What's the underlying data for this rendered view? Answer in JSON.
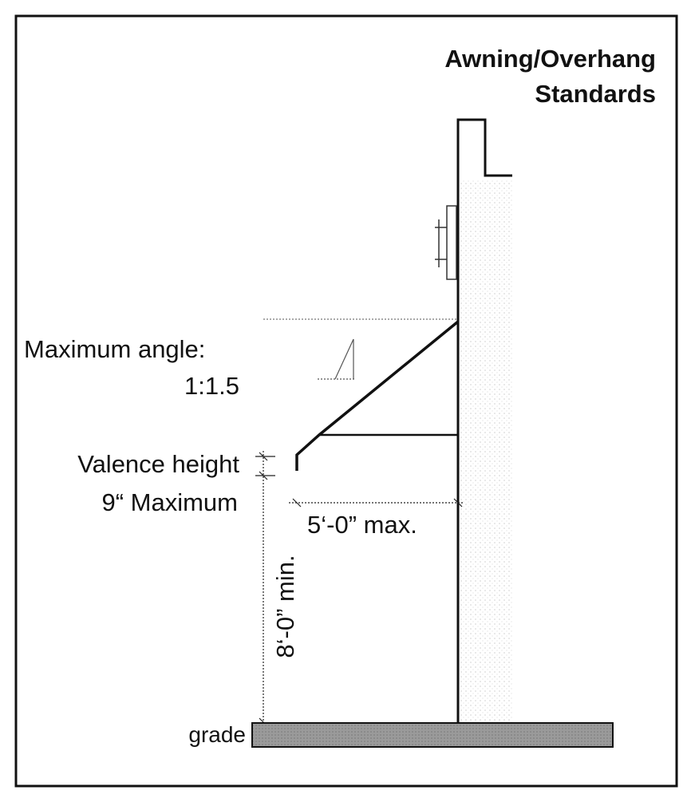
{
  "title": {
    "line1": "Awning/Overhang",
    "line2": "Standards"
  },
  "labels": {
    "angle": "Maximum angle:",
    "angle_value": "1:1.5",
    "valence": "Valence height",
    "valence_value": "9“ Maximum",
    "depth": "5‘-0” max.",
    "clearance": "8‘-0” min.",
    "grade": "grade"
  }
}
